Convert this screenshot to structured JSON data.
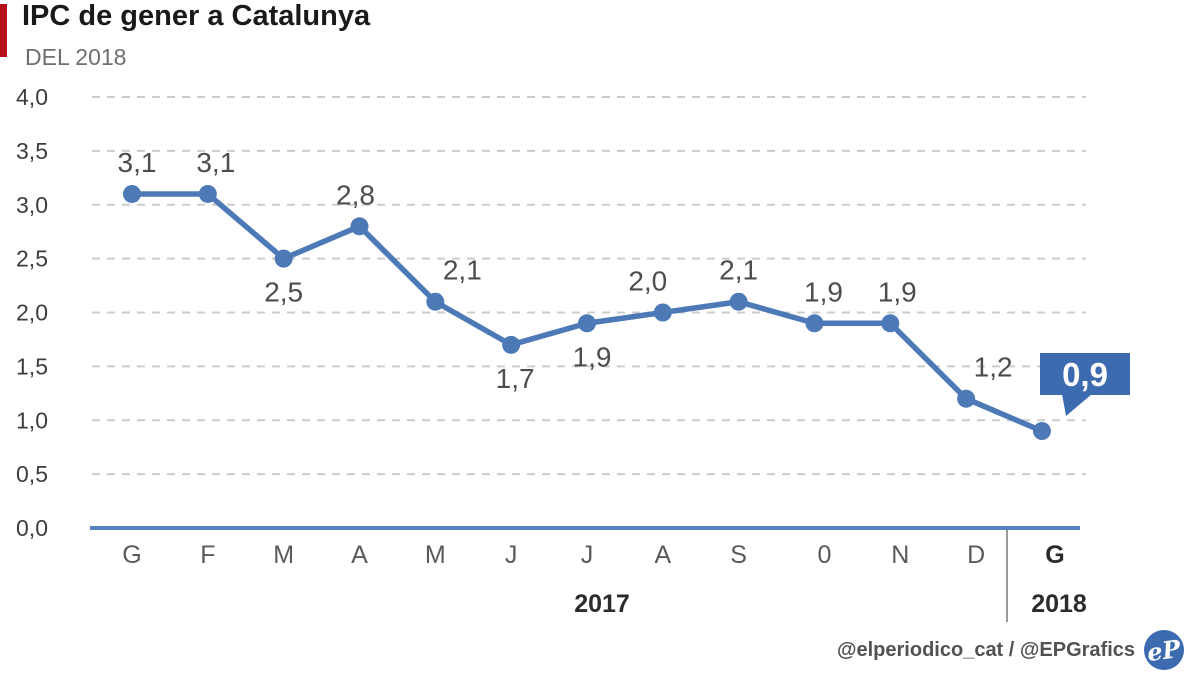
{
  "title": "IPC de gener a Catalunya",
  "subtitle": "DEL 2018",
  "footer": {
    "credit": "@elperiodico_cat / @EPGrafics",
    "logo_text": "eP"
  },
  "colors": {
    "accent_red": "#b5121b",
    "line_blue": "#4d7ab7",
    "axis_blue": "#5580bf",
    "badge_blue": "#3d6bb0",
    "grid_grey": "#cccccc",
    "separator_grey": "#999999",
    "label_grey": "#4d4d4d",
    "month_grey": "#5a5a5a",
    "year_black": "#2b2b2b"
  },
  "chart_data": {
    "type": "line",
    "title": "IPC de gener a Catalunya",
    "subtitle": "DEL 2018",
    "categories": [
      "G",
      "F",
      "M",
      "A",
      "M",
      "J",
      "J",
      "A",
      "S",
      "0",
      "N",
      "D",
      "G"
    ],
    "values": [
      3.1,
      3.1,
      2.5,
      2.8,
      2.1,
      1.7,
      1.9,
      2.0,
      2.1,
      1.9,
      1.9,
      1.2,
      0.9
    ],
    "point_labels": [
      "3,1",
      "3,1",
      "2,5",
      "2,8",
      "2,1",
      "1,7",
      "1,9",
      "2,0",
      "2,1",
      "1,9",
      "1,9",
      "1,2",
      "0,9"
    ],
    "label_positions": [
      "above",
      "above",
      "below",
      "above",
      "above",
      "below",
      "below",
      "above",
      "above",
      "above",
      "above",
      "above",
      "badge"
    ],
    "label_dx": [
      5,
      8,
      0,
      -4,
      27,
      4,
      5,
      -15,
      0,
      9,
      7,
      27,
      0
    ],
    "year_groups": [
      {
        "label": "2017",
        "span": 12
      },
      {
        "label": "2018",
        "span": 1
      }
    ],
    "xlabel": "",
    "ylabel": "",
    "ylim": [
      0,
      4
    ],
    "ytick_step": 0.5,
    "ytick_labels": [
      "0,0",
      "0,5",
      "1,0",
      "1,5",
      "2,0",
      "2,5",
      "3,0",
      "3,5",
      "4,0"
    ],
    "grid": "dashed-horizontal",
    "legend": "none"
  }
}
